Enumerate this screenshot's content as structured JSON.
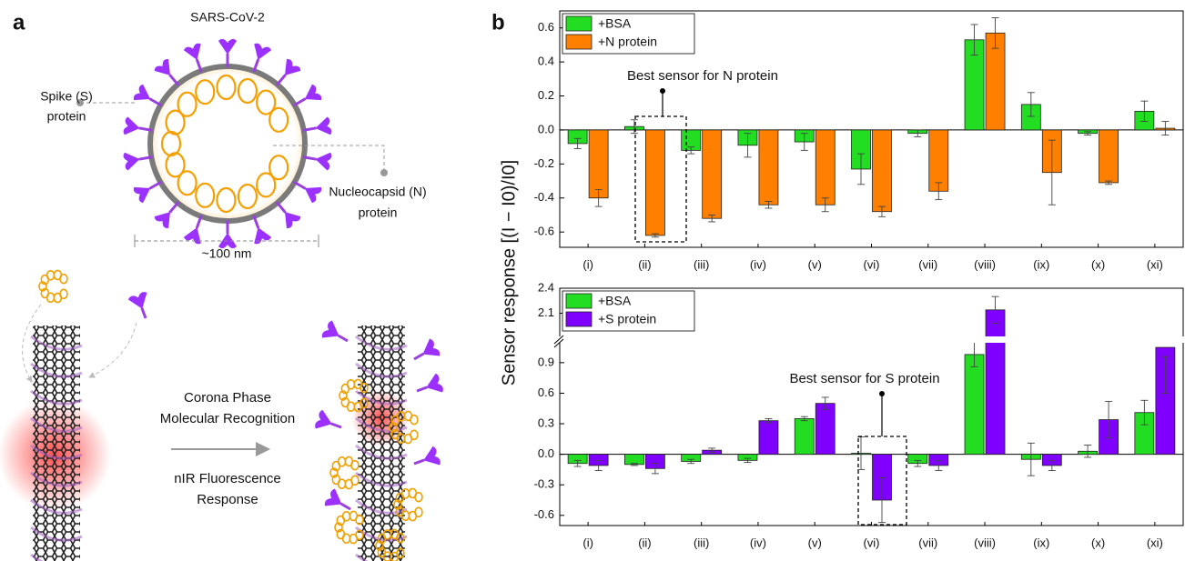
{
  "panel_a": {
    "label": "a",
    "virus_title": "SARS-CoV-2",
    "spike_label": [
      "Spike (S)",
      "protein"
    ],
    "nucleocapsid_label": [
      "Nucleocapsid (N)",
      "protein"
    ],
    "scale": "~100 nm",
    "process_label": [
      "Corona Phase",
      "Molecular Recognition"
    ],
    "response_label": [
      "nIR Fluorescence",
      "Response"
    ]
  },
  "panel_b_label": "b",
  "shared_y_label": "Sensor response [(I − I0)/I0]",
  "chart_data": [
    {
      "type": "bar",
      "categories": [
        "(i)",
        "(ii)",
        "(iii)",
        "(iv)",
        "(v)",
        "(vi)",
        "(vii)",
        "(viii)",
        "(ix)",
        "(x)",
        "(xi)"
      ],
      "series": [
        {
          "name": "+BSA",
          "color": "#22dd22",
          "values": [
            -0.08,
            0.02,
            -0.12,
            -0.09,
            -0.07,
            -0.23,
            -0.02,
            0.53,
            0.15,
            -0.02,
            0.11
          ],
          "errors": [
            0.03,
            0.04,
            0.02,
            0.07,
            0.05,
            0.09,
            0.02,
            0.09,
            0.07,
            0.01,
            0.06
          ]
        },
        {
          "name": "+N protein",
          "color": "#ff8000",
          "values": [
            -0.4,
            -0.62,
            -0.52,
            -0.44,
            -0.44,
            -0.48,
            -0.36,
            0.57,
            -0.25,
            -0.31,
            0.01
          ],
          "errors": [
            0.05,
            0.01,
            0.02,
            0.02,
            0.04,
            0.03,
            0.05,
            0.09,
            0.19,
            0.01,
            0.04
          ]
        }
      ],
      "ylim": [
        -0.69,
        0.7
      ],
      "yticks": [
        -0.6,
        -0.4,
        -0.2,
        {
          "value": 0,
          "label": "0.0"
        },
        0.2,
        0.4,
        0.6
      ],
      "annotation": "Best sensor for N protein",
      "legend": "upper left"
    },
    {
      "type": "bar",
      "categories": [
        "(i)",
        "(ii)",
        "(iii)",
        "(iv)",
        "(v)",
        "(vi)",
        "(vii)",
        "(viii)",
        "(ix)",
        "(x)",
        "(xi)"
      ],
      "series": [
        {
          "name": "+BSA",
          "color": "#22dd22",
          "values": [
            -0.09,
            -0.1,
            -0.07,
            -0.06,
            0.35,
            0.01,
            -0.09,
            0.98,
            -0.05,
            0.03,
            0.41
          ],
          "errors": [
            0.03,
            0.01,
            0.02,
            0.02,
            0.02,
            0.16,
            0.03,
            0.12,
            0.16,
            0.06,
            0.12
          ]
        },
        {
          "name": "+S protein",
          "color": "#7f00ff",
          "values": [
            -0.11,
            -0.14,
            0.04,
            0.33,
            0.5,
            -0.45,
            -0.11,
            2.14,
            -0.11,
            0.34,
            1.05
          ],
          "errors": [
            0.05,
            0.05,
            0.02,
            0.02,
            0.06,
            0.22,
            0.05,
            0.16,
            0.05,
            0.18,
            0.09
          ]
        }
      ],
      "ylim": [
        -0.7,
        1.14
      ],
      "yticks": [
        -0.6,
        -0.3,
        {
          "value": 0,
          "label": "0.0"
        },
        0.3,
        0.6,
        0.9
      ],
      "ylim_upper": [
        1.8,
        2.4
      ],
      "yticks_upper": [
        2.1,
        2.4
      ],
      "axis_break": true,
      "annotation": "Best sensor for S protein",
      "legend": "upper left"
    }
  ]
}
